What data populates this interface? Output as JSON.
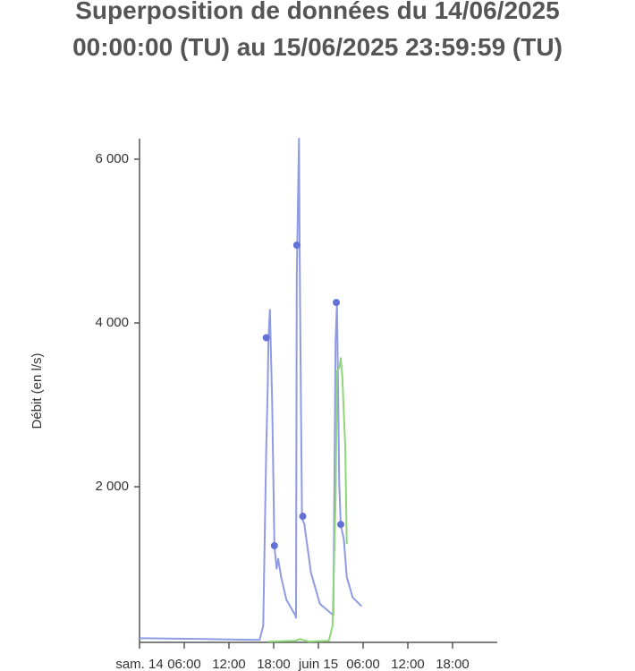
{
  "chart_data": {
    "type": "line",
    "title": "Superposition de données du 14/06/2025 00:00:00 (TU) au 15/06/2025 23:59:59 (TU)",
    "y_label": "Débit (en l/s)",
    "xlim": [
      0,
      48
    ],
    "xticks": [
      {
        "value": 0,
        "label": "sam. 14"
      },
      {
        "value": 6,
        "label": "06:00"
      },
      {
        "value": 12,
        "label": "12:00"
      },
      {
        "value": 18,
        "label": "18:00"
      },
      {
        "value": 24,
        "label": "juin 15"
      },
      {
        "value": 30,
        "label": "06:00"
      },
      {
        "value": 36,
        "label": "12:00"
      },
      {
        "value": 42,
        "label": "18:00"
      }
    ],
    "ylim": [
      100,
      6250
    ],
    "yticks": [
      {
        "value": 2000,
        "label": "2 000"
      },
      {
        "value": 4000,
        "label": "4 000"
      },
      {
        "value": 6000,
        "label": "6 000"
      }
    ],
    "series": [
      {
        "color": "#8f9be3",
        "x": [
          0,
          0.5,
          8.9,
          16.1,
          16.6,
          17.0,
          17.2,
          17.3,
          17.5,
          17.8,
          18.0,
          18.1,
          18.4,
          18.6,
          19.0,
          19.7,
          20.9,
          21.0,
          21.1,
          21.4,
          21.5,
          21.7,
          21.8,
          22.1,
          23.0,
          24.2,
          26.0,
          26.3,
          26.5,
          26.8,
          27.0,
          27.4,
          27.8,
          28.6,
          29.8
        ],
        "values": [
          150,
          150,
          140,
          130,
          300,
          2480,
          3190,
          3810,
          4160,
          3030,
          1850,
          1280,
          1000,
          1120,
          900,
          620,
          430,
          400,
          4560,
          6250,
          4670,
          2640,
          1610,
          1550,
          950,
          570,
          430,
          3770,
          4250,
          2040,
          1530,
          1370,
          900,
          650,
          540
        ]
      },
      {
        "color": "#6471d6",
        "marker": true,
        "x": [
          17.0,
          18.1,
          21.1,
          21.9,
          26.4,
          27.0
        ],
        "values": [
          3820,
          1280,
          4950,
          1640,
          4250,
          1540
        ]
      },
      {
        "color": "#8fd67a",
        "x": [
          17.3,
          20.9,
          21.5,
          22.7,
          25.4,
          25.9,
          26.3,
          26.5,
          26.8,
          27.0,
          27.2,
          27.6,
          27.8
        ],
        "values": [
          110,
          120,
          140,
          110,
          120,
          300,
          1830,
          3410,
          3450,
          3570,
          3350,
          2500,
          1300
        ]
      }
    ]
  }
}
